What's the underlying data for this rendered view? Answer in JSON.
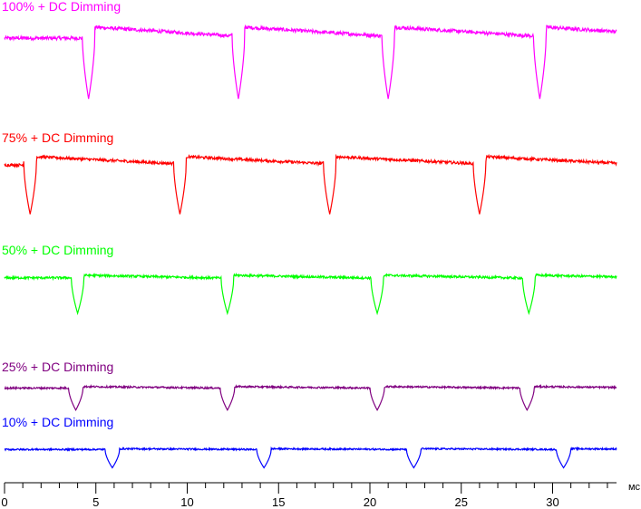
{
  "chart_data": {
    "type": "line",
    "x_unit": "мс",
    "x_ticks": [
      0,
      5,
      10,
      15,
      20,
      25,
      30
    ],
    "xlim": [
      0,
      33.5
    ],
    "grid": false,
    "legend": "label above each trace",
    "series": [
      {
        "name": "100% + DC Dimming",
        "color": "#ff00ff",
        "dip_times_ms": [
          4.6,
          12.8,
          21.0,
          29.3
        ],
        "dip_width_ms": 0.7,
        "trace_level": 0.74,
        "dip_level": 0.08,
        "peak_level": 0.8,
        "start_level": 0.64
      },
      {
        "name": "75% + DC Dimming",
        "color": "#ff0000",
        "dip_times_ms": [
          1.4,
          9.6,
          17.8,
          26.0
        ],
        "dip_width_ms": 0.7,
        "trace_level": 0.71,
        "dip_level": 0.04,
        "peak_level": 0.77,
        "start_level": 0.62
      },
      {
        "name": "50% + DC Dimming",
        "color": "#00ff00",
        "dip_times_ms": [
          4.0,
          12.2,
          20.4,
          28.7
        ],
        "dip_width_ms": 0.7,
        "trace_level": 0.6,
        "dip_level": 0.03,
        "peak_level": 0.63,
        "start_level": 0.58
      },
      {
        "name": "25% + DC Dimming",
        "color": "#800080",
        "dip_times_ms": [
          3.9,
          12.2,
          20.4,
          28.6
        ],
        "dip_width_ms": 0.8,
        "trace_level": 0.52,
        "dip_level": 0.06,
        "peak_level": 0.54,
        "start_level": 0.5
      },
      {
        "name": "10% + DC Dimming",
        "color": "#0000ff",
        "dip_times_ms": [
          5.9,
          14.2,
          22.4,
          30.6
        ],
        "dip_width_ms": 0.8,
        "trace_level": 0.44,
        "dip_level": 0.03,
        "peak_level": 0.45,
        "start_level": 0.43
      }
    ]
  }
}
